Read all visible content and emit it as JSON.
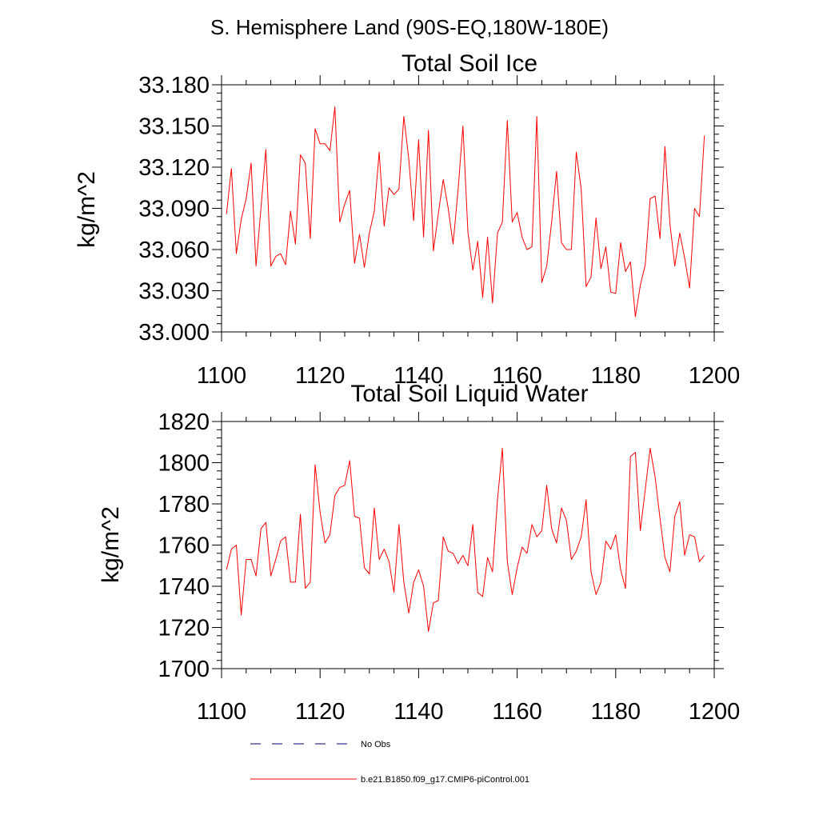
{
  "figure": {
    "title": "S. Hemisphere Land (90S-EQ,180W-180E)"
  },
  "chart_data": [
    {
      "type": "line",
      "title": "Total Soil Ice",
      "xlabel": "",
      "ylabel": "kg/m^2",
      "xlim": [
        1100,
        1200
      ],
      "ylim": [
        33.0,
        33.18
      ],
      "x_ticks": [
        "1100",
        "1120",
        "1140",
        "1160",
        "1180",
        "1200"
      ],
      "y_ticks": [
        "33.000",
        "33.030",
        "33.060",
        "33.090",
        "33.120",
        "33.150",
        "33.180"
      ],
      "grid": false,
      "series": [
        {
          "name": "b.e21.B1850.f09_g17.CMIP6-piControl.001",
          "color": "#ff0000",
          "x_start": 1101,
          "x_step": 1,
          "values": [
            33.086,
            33.119,
            33.057,
            33.082,
            33.097,
            33.123,
            33.048,
            33.09,
            33.133,
            33.048,
            33.055,
            33.057,
            33.049,
            33.088,
            33.064,
            33.129,
            33.123,
            33.068,
            33.148,
            33.137,
            33.137,
            33.132,
            33.164,
            33.08,
            33.093,
            33.103,
            33.05,
            33.071,
            33.047,
            33.072,
            33.088,
            33.131,
            33.077,
            33.105,
            33.1,
            33.104,
            33.157,
            33.126,
            33.081,
            33.14,
            33.069,
            33.147,
            33.059,
            33.086,
            33.111,
            33.09,
            33.064,
            33.103,
            33.15,
            33.073,
            33.045,
            33.066,
            33.025,
            33.069,
            33.021,
            33.072,
            33.08,
            33.154,
            33.08,
            33.087,
            33.069,
            33.06,
            33.062,
            33.157,
            33.036,
            33.048,
            33.08,
            33.117,
            33.065,
            33.06,
            33.06,
            33.131,
            33.104,
            33.033,
            33.04,
            33.083,
            33.046,
            33.062,
            33.029,
            33.028,
            33.065,
            33.044,
            33.051,
            33.011,
            33.034,
            33.049,
            33.097,
            33.099,
            33.068,
            33.135,
            33.079,
            33.048,
            33.072,
            33.054,
            33.032,
            33.09,
            33.084,
            33.143
          ]
        }
      ]
    },
    {
      "type": "line",
      "title": "Total Soil Liquid Water",
      "xlabel": "",
      "ylabel": "kg/m^2",
      "xlim": [
        1100,
        1200
      ],
      "ylim": [
        1700,
        1820
      ],
      "x_ticks": [
        "1100",
        "1120",
        "1140",
        "1160",
        "1180",
        "1200"
      ],
      "y_ticks": [
        "1700",
        "1720",
        "1740",
        "1760",
        "1780",
        "1800",
        "1820"
      ],
      "grid": false,
      "series": [
        {
          "name": "b.e21.B1850.f09_g17.CMIP6-piControl.001",
          "color": "#ff0000",
          "x_start": 1101,
          "x_step": 1,
          "values": [
            1748,
            1758,
            1760,
            1726,
            1753,
            1753,
            1745,
            1768,
            1771,
            1745,
            1753,
            1762,
            1764,
            1742,
            1742,
            1775,
            1739,
            1742,
            1799,
            1776,
            1761,
            1765,
            1784,
            1788,
            1789,
            1801,
            1774,
            1773,
            1749,
            1746,
            1778,
            1753,
            1758,
            1752,
            1737,
            1770,
            1742,
            1727,
            1742,
            1748,
            1740,
            1718,
            1732,
            1733,
            1764,
            1757,
            1756,
            1751,
            1755,
            1750,
            1770,
            1737,
            1735,
            1754,
            1747,
            1782,
            1807,
            1752,
            1736,
            1749,
            1759,
            1756,
            1770,
            1764,
            1767,
            1789,
            1768,
            1761,
            1778,
            1772,
            1753,
            1757,
            1764,
            1782,
            1747,
            1736,
            1742,
            1762,
            1758,
            1765,
            1748,
            1739,
            1803,
            1805,
            1767,
            1787,
            1807,
            1793,
            1773,
            1754,
            1747,
            1774,
            1781,
            1755,
            1765,
            1764,
            1752,
            1755
          ]
        }
      ]
    }
  ],
  "legend": {
    "items": [
      {
        "label": "No Obs",
        "color": "#00007a",
        "style": "dashed"
      },
      {
        "label": "b.e21.B1850.f09_g17.CMIP6-piControl.001",
        "color": "#ff0000",
        "style": "solid"
      }
    ]
  }
}
